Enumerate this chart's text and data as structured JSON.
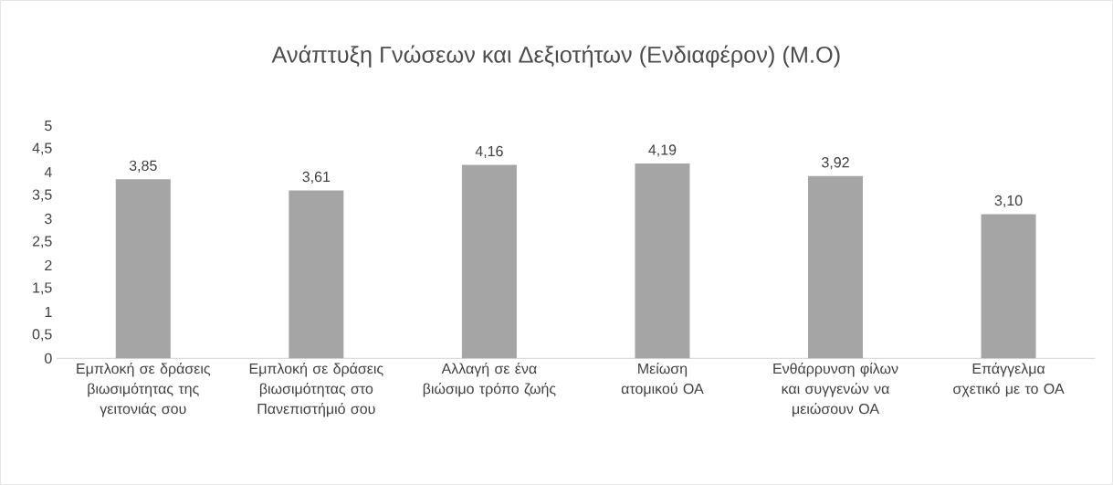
{
  "chart_data": {
    "type": "bar",
    "title": "Ανάπτυξη Γνώσεων και Δεξιοτήτων (Ενδιαφέρον) (Μ.Ο)",
    "categories": [
      "Εμπλοκή σε δράσεις βιωσιμότητας της γειτονιάς σου",
      "Εμπλοκή σε δράσεις βιωσιμότητας στο Πανεπιστήμιό σου",
      "Αλλαγή σε ένα βιώσιμο τρόπο ζωής",
      "Μείωση ατομικού ΟΑ",
      "Ενθάρρυνση φίλων και συγγενών να μειώσουν ΟΑ",
      "Επάγγελμα σχετικό με το ΟΑ"
    ],
    "values": [
      3.85,
      3.61,
      4.16,
      4.19,
      3.92,
      3.1
    ],
    "value_labels": [
      "3,85",
      "3,61",
      "4,16",
      "4,19",
      "3,92",
      "3,10"
    ],
    "color": "#a5a5a5",
    "ylim": [
      0,
      5
    ],
    "yticks": [
      0,
      {
        "value": 0.5,
        "label": "0,5"
      },
      1,
      {
        "value": 1.5,
        "label": "1,5"
      },
      2,
      {
        "value": 2.5,
        "label": "2,5"
      },
      3,
      {
        "value": 3.5,
        "label": "3,5"
      },
      4,
      {
        "value": 4.5,
        "label": "4,5"
      },
      5
    ],
    "orientation": "vertical"
  }
}
